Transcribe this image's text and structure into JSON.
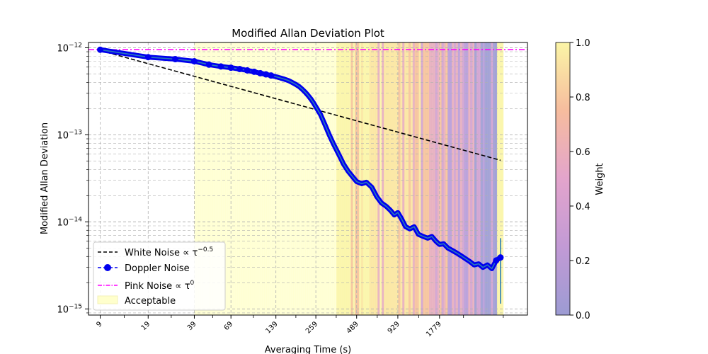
{
  "chart_data": {
    "type": "line",
    "title": "Modified Allan Deviation Plot",
    "xlabel": "Averaging Time (s)",
    "ylabel": "Modified Allan Deviation",
    "x_scale": "log",
    "y_scale": "log",
    "xlim": [
      7.5,
      7000
    ],
    "ylim": [
      8.5e-16,
      1.15e-12
    ],
    "x_ticks": [
      9,
      19,
      39,
      69,
      139,
      259,
      489,
      929,
      1779
    ],
    "x_tick_labels": [
      "9",
      "19",
      "39",
      "69",
      "139",
      "259",
      "489",
      "929",
      "1779"
    ],
    "y_ticks": [
      1e-15,
      1e-14,
      1e-13,
      1e-12
    ],
    "y_tick_labels": [
      {
        "base": "10",
        "exp": "−15"
      },
      {
        "base": "10",
        "exp": "−14"
      },
      {
        "base": "10",
        "exp": "−13"
      },
      {
        "base": "10",
        "exp": "−12"
      }
    ],
    "grid": true,
    "legend_position": "lower-left",
    "series": [
      {
        "name": "White Noise",
        "name_suffix": "∝ τ",
        "name_exponent": "−0.5",
        "style": "dashed",
        "color": "#000000",
        "x": [
          9,
          4600
        ],
        "y": [
          9.3e-13,
          5.1e-14
        ]
      },
      {
        "name": "Doppler Noise",
        "style": "solid-markers",
        "color": "#0000ee",
        "x": [
          9,
          19,
          29,
          39,
          49,
          59,
          69,
          79,
          89,
          99,
          109,
          119,
          129,
          139,
          149,
          159,
          169,
          179,
          189,
          199,
          209,
          219,
          229,
          239,
          249,
          259,
          279,
          299,
          319,
          339,
          359,
          379,
          399,
          429,
          459,
          489,
          529,
          569,
          619,
          669,
          719,
          779,
          829,
          879,
          929,
          979,
          1049,
          1119,
          1199,
          1279,
          1379,
          1479,
          1579,
          1679,
          1779,
          1899,
          2029,
          2169,
          2319,
          2479,
          2649,
          2849,
          3049,
          3269,
          3499,
          3749,
          4019,
          4299,
          4599
        ],
        "y": [
          9.5e-13,
          7.8e-13,
          7.4e-13,
          7e-13,
          6.4e-13,
          6.1e-13,
          5.9e-13,
          5.7e-13,
          5.5e-13,
          5.3e-13,
          5.1e-13,
          4.95e-13,
          4.8e-13,
          4.65e-13,
          4.5e-13,
          4.35e-13,
          4.2e-13,
          4e-13,
          3.8e-13,
          3.6e-13,
          3.35e-13,
          3.1e-13,
          2.85e-13,
          2.6e-13,
          2.35e-13,
          2.1e-13,
          1.7e-13,
          1.3e-13,
          1e-13,
          8e-14,
          6.6e-14,
          5.5e-14,
          4.6e-14,
          3.8e-14,
          3.3e-14,
          2.9e-14,
          2.75e-14,
          2.85e-14,
          2.5e-14,
          1.95e-14,
          1.65e-14,
          1.5e-14,
          1.35e-14,
          1.2e-14,
          1.28e-14,
          1.1e-14,
          8.8e-15,
          8.3e-15,
          8.8e-15,
          7.2e-15,
          6.8e-15,
          6.5e-15,
          6.8e-15,
          6e-15,
          5.5e-15,
          5.6e-15,
          5e-15,
          4.7e-15,
          4.4e-15,
          4.1e-15,
          3.8e-15,
          3.5e-15,
          3.2e-15,
          3.3e-15,
          3e-15,
          3.2e-15,
          2.9e-15,
          3.6e-15,
          3.9e-15
        ],
        "marker_count": 13,
        "error_bar": {
          "x": 4599,
          "y_low": 1.15e-15,
          "y_high": 6.5e-15
        }
      },
      {
        "name": "Pink Noise",
        "name_suffix": "∝ τ",
        "name_exponent": "0",
        "style": "dashdot",
        "color": "#ff00ff",
        "x": [
          7.5,
          7000
        ],
        "y": [
          9.5e-13,
          9.5e-13
        ]
      }
    ],
    "acceptable": {
      "name": "Acceptable",
      "color": "#ffffcc",
      "range": [
        39,
        4800
      ],
      "weighted_from": 350
    },
    "colorbar": {
      "label": "Weight",
      "min": 0.0,
      "max": 1.0,
      "ticks": [
        "0.0",
        "0.2",
        "0.4",
        "0.6",
        "0.8",
        "1.0"
      ],
      "colormap": "plasma"
    }
  }
}
